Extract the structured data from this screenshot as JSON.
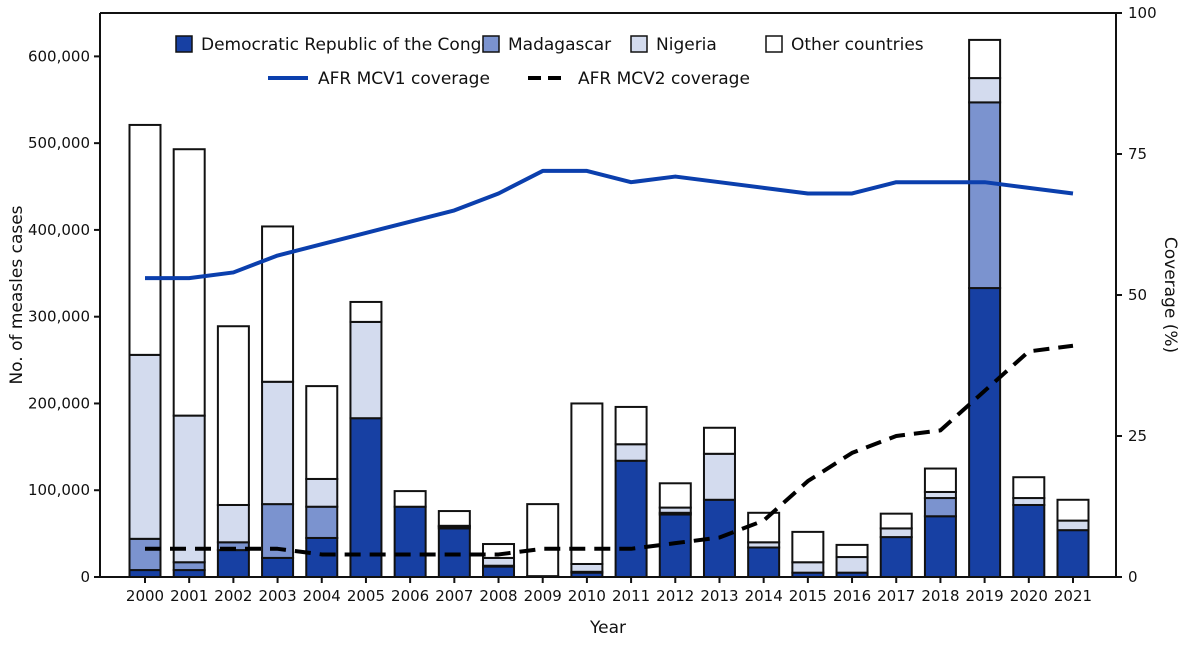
{
  "chart_data": {
    "type": "bar",
    "stacked": true,
    "title": "",
    "xlabel": "Year",
    "ylabel": "No. of measles cases",
    "y2label": "Coverage (%)",
    "ylim": [
      0,
      650000
    ],
    "y2lim": [
      0,
      100
    ],
    "yticks": [
      0,
      100000,
      200000,
      300000,
      400000,
      500000,
      600000
    ],
    "ytick_labels": [
      "0",
      "100,000",
      "200,000",
      "300,000",
      "400,000",
      "500,000",
      "600,000"
    ],
    "y2ticks": [
      0,
      25,
      50,
      75,
      100
    ],
    "y2tick_labels": [
      "0",
      "25",
      "50",
      "75",
      "100"
    ],
    "categories": [
      "2000",
      "2001",
      "2002",
      "2003",
      "2004",
      "2005",
      "2006",
      "2007",
      "2008",
      "2009",
      "2010",
      "2011",
      "2012",
      "2013",
      "2014",
      "2015",
      "2016",
      "2017",
      "2018",
      "2019",
      "2020",
      "2021"
    ],
    "series": [
      {
        "name": "Democratic Republic of the Congo",
        "color": "#1740a3",
        "values": [
          8000,
          8000,
          31000,
          22000,
          45000,
          183000,
          81000,
          56000,
          12000,
          1000,
          5000,
          134000,
          72000,
          89000,
          34000,
          5000,
          5000,
          46000,
          70000,
          333000,
          83000,
          54000
        ]
      },
      {
        "name": "Madagascar",
        "color": "#7b93cf",
        "values": [
          36000,
          9000,
          9000,
          62000,
          36000,
          0,
          0,
          2000,
          1000,
          0,
          1000,
          0,
          2000,
          0,
          0,
          0,
          0,
          0,
          21000,
          214000,
          0,
          0
        ]
      },
      {
        "name": "Nigeria",
        "color": "#d3dbee",
        "values": [
          212000,
          169000,
          43000,
          141000,
          32000,
          111000,
          0,
          1000,
          9000,
          0,
          9000,
          19000,
          6000,
          53000,
          6000,
          12000,
          18000,
          10000,
          7000,
          28000,
          8000,
          11000
        ]
      },
      {
        "name": "Other countries",
        "color": "#ffffff",
        "values": [
          265000,
          307000,
          206000,
          179000,
          107000,
          23000,
          18000,
          17000,
          16000,
          83000,
          185000,
          43000,
          28000,
          30000,
          34000,
          35000,
          14000,
          17000,
          27000,
          44000,
          24000,
          24000
        ]
      }
    ],
    "lines": [
      {
        "name": "AFR MCV1 coverage",
        "axis": "right",
        "style": "solid",
        "color": "#0b3fad",
        "values": [
          53,
          53,
          54,
          57,
          59,
          61,
          63,
          65,
          68,
          72,
          72,
          70,
          71,
          70,
          69,
          68,
          68,
          70,
          70,
          70,
          69,
          68
        ]
      },
      {
        "name": "AFR MCV2 coverage",
        "axis": "right",
        "style": "dashed",
        "color": "#000000",
        "values": [
          5,
          5,
          5,
          5,
          4,
          4,
          4,
          4,
          4,
          5,
          5,
          5,
          6,
          7,
          10,
          17,
          22,
          25,
          26,
          33,
          40,
          41
        ]
      }
    ],
    "legend": "top-center",
    "grid": false
  }
}
